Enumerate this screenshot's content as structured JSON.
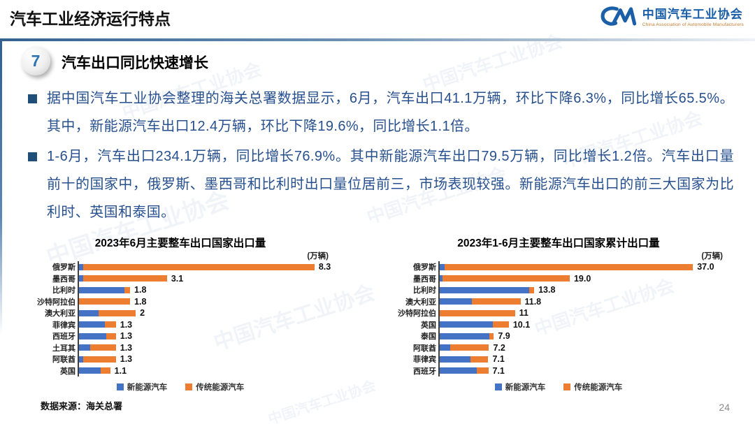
{
  "slide": {
    "header_title": "汽车工业经济运行特点",
    "page_number": "24",
    "source_note": "数据来源：海关总署",
    "watermark_text": "中国汽车工业协会"
  },
  "logo": {
    "monogram": "CM",
    "org_name_cn": "中国汽车工业协会",
    "org_name_en": "China Association of Automobile Manufacturers"
  },
  "section": {
    "number": "7",
    "title": "汽车出口同比快速增长"
  },
  "bullets": [
    {
      "text": "据中国汽车工业协会整理的海关总署数据显示，6月，汽车出口41.1万辆，环比下降6.3%，同比增长65.5%。其中，新能源汽车出口12.4万辆，环比下降19.6%，同比增长1.1倍。"
    },
    {
      "text": "1-6月，汽车出口234.1万辆，同比增长76.9%。其中新能源汽车出口79.5万辆，同比增长1.2倍。汽车出口量前十的国家中，俄罗斯、墨西哥和比利时出口量位居前三，市场表现较强。新能源汽车出口的前三大国家为比利时、英国和泰国。"
    }
  ],
  "colors": {
    "nev": "#4472C4",
    "ice": "#ED7D31",
    "accent_blue": "#2E74B5",
    "body_text": "#27508F",
    "logo_blue": "#1B5FA8"
  },
  "chart_data": [
    {
      "type": "bar",
      "orientation": "horizontal",
      "stacked": true,
      "title": "2023年6月主要整车出口国家出口量",
      "unit": "(万辆)",
      "categories": [
        "俄罗斯",
        "墨西哥",
        "比利时",
        "沙特阿拉伯",
        "澳大利亚",
        "菲律宾",
        "西班牙",
        "土耳其",
        "阿联酋",
        "英国"
      ],
      "series": [
        {
          "name": "新能源汽车",
          "color_key": "nev",
          "values": [
            0.15,
            0.15,
            1.6,
            0,
            0.7,
            0.9,
            0.95,
            0.4,
            0.15,
            0.77
          ]
        },
        {
          "name": "传统能源汽车",
          "color_key": "ice",
          "values": [
            8.15,
            2.95,
            0.2,
            1.8,
            1.3,
            0.4,
            0.35,
            0.9,
            1.15,
            0.33
          ]
        }
      ],
      "totals": [
        "8.3",
        "3.1",
        "1.8",
        "1.8",
        "2",
        "1.3",
        "1.3",
        "1.3",
        "1.3",
        "1.1"
      ],
      "xlim": [
        0,
        8.5
      ],
      "grid": false,
      "legend_position": "bottom"
    },
    {
      "type": "bar",
      "orientation": "horizontal",
      "stacked": true,
      "title": "2023年1-6月主要整车出口国家累计出口量",
      "unit": "(万辆)",
      "categories": [
        "俄罗斯",
        "墨西哥",
        "比利时",
        "澳大利亚",
        "沙特阿拉伯",
        "英国",
        "泰国",
        "阿联酋",
        "菲律宾",
        "西班牙"
      ],
      "series": [
        {
          "name": "新能源汽车",
          "color_key": "nev",
          "values": [
            0.7,
            0.4,
            13.1,
            4.7,
            0,
            7.8,
            7.3,
            1.5,
            4.5,
            5.4
          ]
        },
        {
          "name": "传统能源汽车",
          "color_key": "ice",
          "values": [
            36.3,
            18.6,
            0.7,
            7.1,
            11,
            2.3,
            0.6,
            5.7,
            2.6,
            1.7
          ]
        }
      ],
      "totals": [
        "37.0",
        "19.0",
        "13.8",
        "11.8",
        "11",
        "10.1",
        "7.9",
        "7.2",
        "7.1",
        "7.1"
      ],
      "xlim": [
        0,
        38
      ],
      "grid": false,
      "legend_position": "bottom"
    }
  ]
}
